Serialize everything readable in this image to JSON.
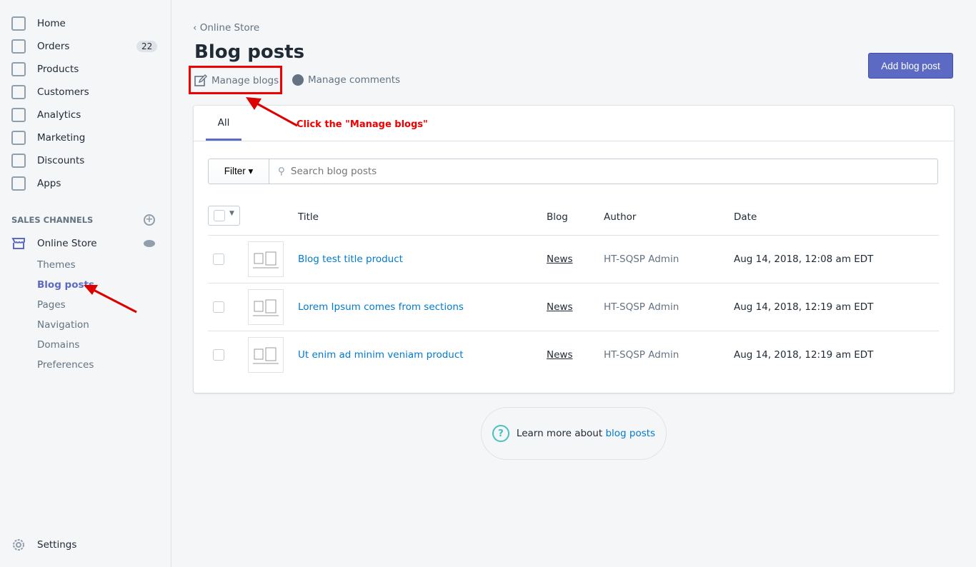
{
  "sidebar": {
    "items": [
      {
        "label": "Home",
        "icon": "home-icon"
      },
      {
        "label": "Orders",
        "icon": "orders-icon",
        "badge": "22"
      },
      {
        "label": "Products",
        "icon": "tag-icon"
      },
      {
        "label": "Customers",
        "icon": "person-icon"
      },
      {
        "label": "Analytics",
        "icon": "chart-icon"
      },
      {
        "label": "Marketing",
        "icon": "megaphone-icon"
      },
      {
        "label": "Discounts",
        "icon": "discount-icon"
      },
      {
        "label": "Apps",
        "icon": "apps-icon"
      }
    ],
    "section_title": "SALES CHANNELS",
    "channel": "Online Store",
    "sub_items": [
      "Themes",
      "Blog posts",
      "Pages",
      "Navigation",
      "Domains",
      "Preferences"
    ],
    "settings": "Settings"
  },
  "header": {
    "breadcrumb": "Online Store",
    "title": "Blog posts",
    "manage_blogs": "Manage blogs",
    "manage_comments": "Manage comments",
    "add_button": "Add blog post"
  },
  "tabs": [
    "All"
  ],
  "filter": {
    "label": "Filter",
    "placeholder": "Search blog posts"
  },
  "table": {
    "columns": [
      "Title",
      "Blog",
      "Author",
      "Date"
    ],
    "rows": [
      {
        "title": "Blog test title product",
        "blog": "News",
        "author": "HT-SQSP Admin",
        "date": "Aug 14, 2018, 12:08 am EDT"
      },
      {
        "title": "Lorem Ipsum comes from sections",
        "blog": "News",
        "author": "HT-SQSP Admin",
        "date": "Aug 14, 2018, 12:19 am EDT"
      },
      {
        "title": "Ut enim ad minim veniam product",
        "blog": "News",
        "author": "HT-SQSP Admin",
        "date": "Aug 14, 2018, 12:19 am EDT"
      }
    ]
  },
  "footer": {
    "learn_text": "Learn more about ",
    "learn_link": "blog posts"
  },
  "annotation": "Click the \"Manage blogs\"",
  "colors": {
    "accent": "#5c6ac4",
    "link": "#007ace",
    "annotation": "#e00000"
  }
}
